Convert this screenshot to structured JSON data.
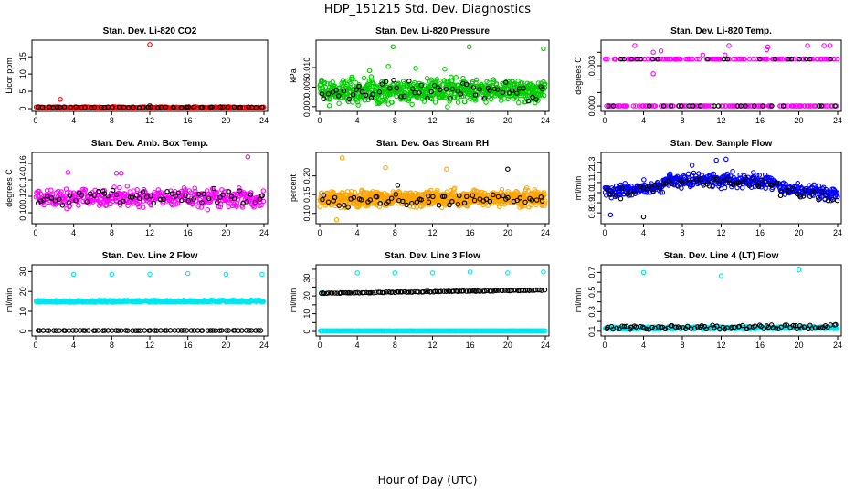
{
  "figure": {
    "title": "HDP_151215  Std. Dev. Diagnostics",
    "xlabel": "Hour of Day (UTC)",
    "secondary_color": "#000000"
  },
  "chart_data": [
    {
      "type": "scatter",
      "title": "Stan. Dev. Li-820 CO2",
      "ylabel": "Licor ppm",
      "color": "#ff0000",
      "xlim": [
        0,
        24
      ],
      "xticks": [
        0,
        4,
        8,
        12,
        16,
        20,
        24
      ],
      "ylim": [
        0,
        19
      ],
      "yticks": [
        0,
        5,
        10,
        15
      ],
      "ytick_labels": [
        "0",
        "5",
        "10",
        "15"
      ],
      "series": [
        {
          "name": "primary",
          "color": "#ff0000",
          "base": 0.35,
          "spread": 0.25,
          "n": 220,
          "outliers": [
            [
              2.6,
              2.7
            ],
            [
              12.0,
              18.5
            ],
            [
              12.0,
              0.9
            ]
          ]
        },
        {
          "name": "secondary",
          "color": "#000000",
          "base": 0.4,
          "spread": 0.2,
          "n": 48,
          "outliers": []
        }
      ]
    },
    {
      "type": "scatter",
      "title": "Stan. Dev. Li-820 Pressure",
      "ylabel": "kPa",
      "color": "#00cc00",
      "xlim": [
        0,
        24
      ],
      "xticks": [
        0,
        4,
        8,
        12,
        16,
        20,
        24
      ],
      "ylim": [
        -0.0005,
        0.0163
      ],
      "yticks": [
        0,
        0.005,
        0.01
      ],
      "ytick_labels": [
        "0.000",
        "0.005",
        "0.010"
      ],
      "series": [
        {
          "name": "primary",
          "color": "#00cc00",
          "base": 0.004,
          "spread": 0.0042,
          "n": 700,
          "outliers": [
            [
              7.8,
              0.0153
            ],
            [
              15.9,
              0.0153
            ],
            [
              23.8,
              0.0148
            ],
            [
              7.3,
              0.0103
            ],
            [
              10.2,
              0.0098
            ],
            [
              13.3,
              0.0096
            ],
            [
              5.3,
              0.0092
            ]
          ]
        },
        {
          "name": "secondary",
          "color": "#000000",
          "base": 0.004,
          "spread": 0.0035,
          "n": 60,
          "outliers": []
        }
      ]
    },
    {
      "type": "scatter",
      "title": "Stan. Dev. Li-820 Temp.",
      "ylabel": "degrees C",
      "color": "#ff00ff",
      "xlim": [
        0,
        24
      ],
      "xticks": [
        0,
        4,
        8,
        12,
        16,
        20,
        24
      ],
      "ylim": [
        -0.0002,
        0.0047
      ],
      "yticks": [
        0,
        0.001,
        0.002,
        0.003,
        0.004
      ],
      "ytick_labels": [
        "0.000",
        "",
        "",
        "0.003",
        ""
      ],
      "series": [
        {
          "name": "primary",
          "color": "#ff00ff",
          "levels": [
            0,
            0.0035
          ],
          "n": 260,
          "outliers": [
            [
              5.0,
              0.0024
            ],
            [
              5.0,
              0.004
            ],
            [
              7.3,
              0.0035
            ],
            [
              10.1,
              0.0038
            ],
            [
              12.4,
              0.0038
            ],
            [
              16.8,
              0.0044
            ],
            [
              16.7,
              0.0042
            ],
            [
              20.9,
              0.0045
            ],
            [
              22.6,
              0.0045
            ],
            [
              3.1,
              0.0045
            ],
            [
              5.8,
              0.0041
            ],
            [
              12.8,
              0.0045
            ],
            [
              23.2,
              0.0045
            ]
          ]
        },
        {
          "name": "secondary",
          "color": "#000000",
          "levels": [
            0,
            0.0035
          ],
          "n": 40,
          "outliers": []
        }
      ]
    },
    {
      "type": "scatter",
      "title": "Stan. Dev. Amb. Box Temp.",
      "ylabel": "degrees C",
      "color": "#ff00ff",
      "xlim": [
        0,
        24
      ],
      "xticks": [
        0,
        4,
        8,
        12,
        16,
        20,
        24
      ],
      "ylim": [
        0.09,
        0.17
      ],
      "yticks": [
        0.1,
        0.12,
        0.14,
        0.16
      ],
      "ytick_labels": [
        "0.10",
        "0.12",
        "0.14",
        "0.16"
      ],
      "series": [
        {
          "name": "primary",
          "color": "#ff00ff",
          "base": 0.118,
          "spread": 0.016,
          "n": 420,
          "outliers": [
            [
              22.3,
              0.168
            ],
            [
              8.5,
              0.148
            ],
            [
              3.4,
              0.149
            ],
            [
              9.0,
              0.148
            ]
          ]
        },
        {
          "name": "secondary",
          "color": "#000000",
          "base": 0.118,
          "spread": 0.013,
          "n": 60,
          "outliers": []
        }
      ]
    },
    {
      "type": "scatter",
      "title": "Stan. Dev. Gas Stream RH",
      "ylabel": "percent",
      "color": "#ffa500",
      "xlim": [
        0,
        24
      ],
      "xticks": [
        0,
        4,
        8,
        12,
        16,
        20,
        24
      ],
      "ylim": [
        0.08,
        0.255
      ],
      "yticks": [
        0.1,
        0.15,
        0.2
      ],
      "ytick_labels": [
        "0.10",
        "0.15",
        "0.20"
      ],
      "series": [
        {
          "name": "primary",
          "color": "#ffa500",
          "base": 0.14,
          "spread": 0.03,
          "n": 800,
          "outliers": [
            [
              2.4,
              0.248
            ],
            [
              1.8,
              0.083
            ],
            [
              7.0,
              0.222
            ],
            [
              13.5,
              0.218
            ]
          ]
        },
        {
          "name": "secondary",
          "color": "#000000",
          "base": 0.135,
          "spread": 0.025,
          "n": 60,
          "outliers": [
            [
              20.0,
              0.218
            ],
            [
              8.3,
              0.175
            ]
          ]
        }
      ]
    },
    {
      "type": "scatter",
      "title": "Stan. Dev. Sample Flow",
      "ylabel": "ml/min",
      "color": "#0000ff",
      "xlim": [
        0,
        24
      ],
      "xticks": [
        0,
        4,
        8,
        12,
        16,
        20,
        24
      ],
      "ylim": [
        0.72,
        1.37
      ],
      "yticks": [
        0.8,
        0.9,
        1.0,
        1.1,
        1.2,
        1.3
      ],
      "ytick_labels": [
        "0.8",
        "0.9",
        "1.0",
        "1.1",
        "1.2",
        "1.3"
      ],
      "series": [
        {
          "name": "primary",
          "color": "#0000ff",
          "base": 1.0,
          "spread": 0.1,
          "trend": true,
          "n": 480,
          "outliers": [
            [
              11.5,
              1.32
            ],
            [
              12.5,
              1.33
            ],
            [
              0.6,
              0.78
            ],
            [
              9.0,
              1.27
            ]
          ]
        },
        {
          "name": "secondary",
          "color": "#000000",
          "base": 0.98,
          "spread": 0.08,
          "trend": true,
          "n": 70,
          "outliers": [
            [
              4.0,
              0.76
            ]
          ]
        }
      ]
    },
    {
      "type": "scatter",
      "title": "Stan. Dev. Line 2 Flow",
      "ylabel": "ml/min",
      "color": "#00e5ee",
      "xlim": [
        0,
        24
      ],
      "xticks": [
        0,
        4,
        8,
        12,
        16,
        20,
        24
      ],
      "ylim": [
        -1,
        32
      ],
      "yticks": [
        0,
        10,
        20,
        30
      ],
      "ytick_labels": [
        "0",
        "10",
        "20",
        "30"
      ],
      "series": [
        {
          "name": "primary",
          "color": "#00e5ee",
          "bands": [
            [
              14.5,
              15.5
            ]
          ],
          "n": 300,
          "outliers": [
            [
              4.0,
              28.6
            ],
            [
              8.0,
              28.6
            ],
            [
              12.0,
              28.6
            ],
            [
              16.0,
              29.0
            ],
            [
              20.0,
              28.6
            ],
            [
              23.8,
              28.6
            ]
          ]
        },
        {
          "name": "secondary",
          "color": "#000000",
          "bands": [
            [
              0.3,
              0.4
            ]
          ],
          "n": 70,
          "outliers": []
        }
      ]
    },
    {
      "type": "scatter",
      "title": "Stan. Dev. Line 3 Flow",
      "ylabel": "ml/min",
      "color": "#00e5ee",
      "xlim": [
        0,
        24
      ],
      "xticks": [
        0,
        4,
        8,
        12,
        16,
        20,
        24
      ],
      "ylim": [
        -1,
        36
      ],
      "yticks": [
        0,
        5,
        10,
        15,
        20,
        25,
        30,
        35
      ],
      "ytick_labels": [
        "0",
        "",
        "10",
        "",
        "20",
        "",
        "30",
        ""
      ],
      "series": [
        {
          "name": "primary",
          "color": "#00e5ee",
          "bands": [
            [
              0.3,
              0.4
            ]
          ],
          "n": 260,
          "outliers": [
            [
              0.2,
              21.8
            ],
            [
              4.0,
              33.0
            ],
            [
              8.0,
              33.0
            ],
            [
              12.0,
              33.0
            ],
            [
              16.0,
              33.5
            ],
            [
              20.0,
              33.0
            ],
            [
              23.8,
              33.5
            ]
          ]
        },
        {
          "name": "secondary",
          "color": "#000000",
          "bands": [
            [
              21.5,
              23.3
            ]
          ],
          "slope": true,
          "n": 110,
          "outliers": []
        }
      ]
    },
    {
      "type": "scatter",
      "title": "Stan. Dev. Line 4 (LT) Flow",
      "ylabel": "ml/min",
      "color": "#00e5ee",
      "xlim": [
        0,
        24
      ],
      "xticks": [
        0,
        4,
        8,
        12,
        16,
        20,
        24
      ],
      "ylim": [
        0.08,
        0.75
      ],
      "yticks": [
        0.1,
        0.2,
        0.3,
        0.4,
        0.5,
        0.6,
        0.7
      ],
      "ytick_labels": [
        "0.1",
        "",
        "0.3",
        "",
        "0.5",
        "",
        "0.7"
      ],
      "series": [
        {
          "name": "primary",
          "color": "#00e5ee",
          "bands": [
            [
              0.12,
              0.145
            ]
          ],
          "n": 320,
          "outliers": [
            [
              4.0,
              0.7
            ],
            [
              12.0,
              0.665
            ],
            [
              20.0,
              0.725
            ]
          ]
        },
        {
          "name": "secondary",
          "color": "#000000",
          "bands": [
            [
              0.115,
              0.16
            ]
          ],
          "n": 90,
          "outliers": []
        }
      ]
    }
  ]
}
